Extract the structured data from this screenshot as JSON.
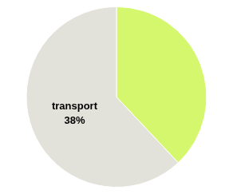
{
  "chart_data": {
    "type": "pie",
    "values": [
      38,
      62
    ],
    "colors": [
      "#d4f76e",
      "#e2e2da"
    ],
    "annotation": "transport\n38%"
  }
}
